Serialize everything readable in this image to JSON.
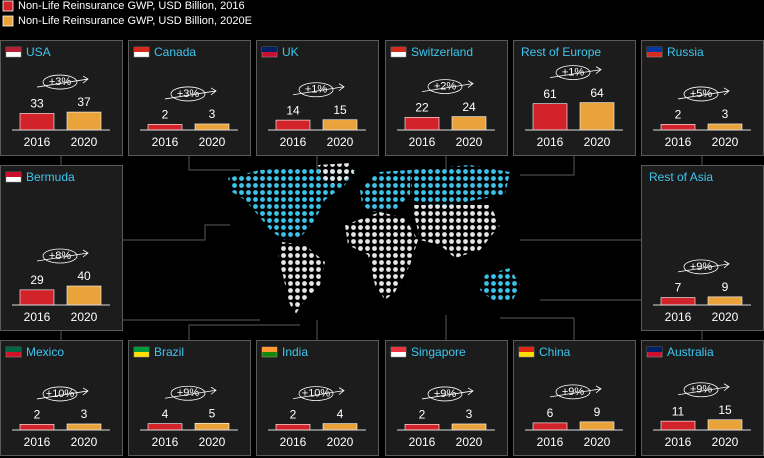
{
  "legend": [
    {
      "name": "Non-Life Reinsurance GWP, USD Billion, 2016",
      "color": "#d2232a"
    },
    {
      "name": "Non-Life Reinsurance GWP, USD Billion, 2020E",
      "color": "#e9a33a"
    }
  ],
  "chart_data": [
    {
      "type": "bar",
      "title": "USA",
      "categories": [
        "2016",
        "2020"
      ],
      "values": [
        33,
        37
      ],
      "annotation": "+3%"
    },
    {
      "type": "bar",
      "title": "Canada",
      "categories": [
        "2016",
        "2020"
      ],
      "values": [
        2,
        3
      ],
      "annotation": "+3%"
    },
    {
      "type": "bar",
      "title": "UK",
      "categories": [
        "2016",
        "2020"
      ],
      "values": [
        14,
        15
      ],
      "annotation": "+1%"
    },
    {
      "type": "bar",
      "title": "Switzerland",
      "categories": [
        "2016",
        "2020"
      ],
      "values": [
        22,
        24
      ],
      "annotation": "+2%"
    },
    {
      "type": "bar",
      "title": "Rest of Europe",
      "categories": [
        "2016",
        "2020"
      ],
      "values": [
        61,
        64
      ],
      "annotation": "+1%"
    },
    {
      "type": "bar",
      "title": "Russia",
      "categories": [
        "2016",
        "2020"
      ],
      "values": [
        2,
        3
      ],
      "annotation": "+5%"
    },
    {
      "type": "bar",
      "title": "Bermuda",
      "categories": [
        "2016",
        "2020"
      ],
      "values": [
        29,
        40
      ],
      "annotation": "+8%"
    },
    {
      "type": "bar",
      "title": "Rest of Asia",
      "categories": [
        "2016",
        "2020"
      ],
      "values": [
        7,
        9
      ],
      "annotation": "+9%"
    },
    {
      "type": "bar",
      "title": "Mexico",
      "categories": [
        "2016",
        "2020"
      ],
      "values": [
        2,
        3
      ],
      "annotation": "+10%"
    },
    {
      "type": "bar",
      "title": "Brazil",
      "categories": [
        "2016",
        "2020"
      ],
      "values": [
        4,
        5
      ],
      "annotation": "+9%"
    },
    {
      "type": "bar",
      "title": "India",
      "categories": [
        "2016",
        "2020"
      ],
      "values": [
        2,
        4
      ],
      "annotation": "+10%"
    },
    {
      "type": "bar",
      "title": "Singapore",
      "categories": [
        "2016",
        "2020"
      ],
      "values": [
        2,
        3
      ],
      "annotation": "+9%"
    },
    {
      "type": "bar",
      "title": "China",
      "categories": [
        "2016",
        "2020"
      ],
      "values": [
        6,
        9
      ],
      "annotation": "+9%"
    },
    {
      "type": "bar",
      "title": "Australia",
      "categories": [
        "2016",
        "2020"
      ],
      "values": [
        11,
        15
      ],
      "annotation": "+9%"
    }
  ]
}
